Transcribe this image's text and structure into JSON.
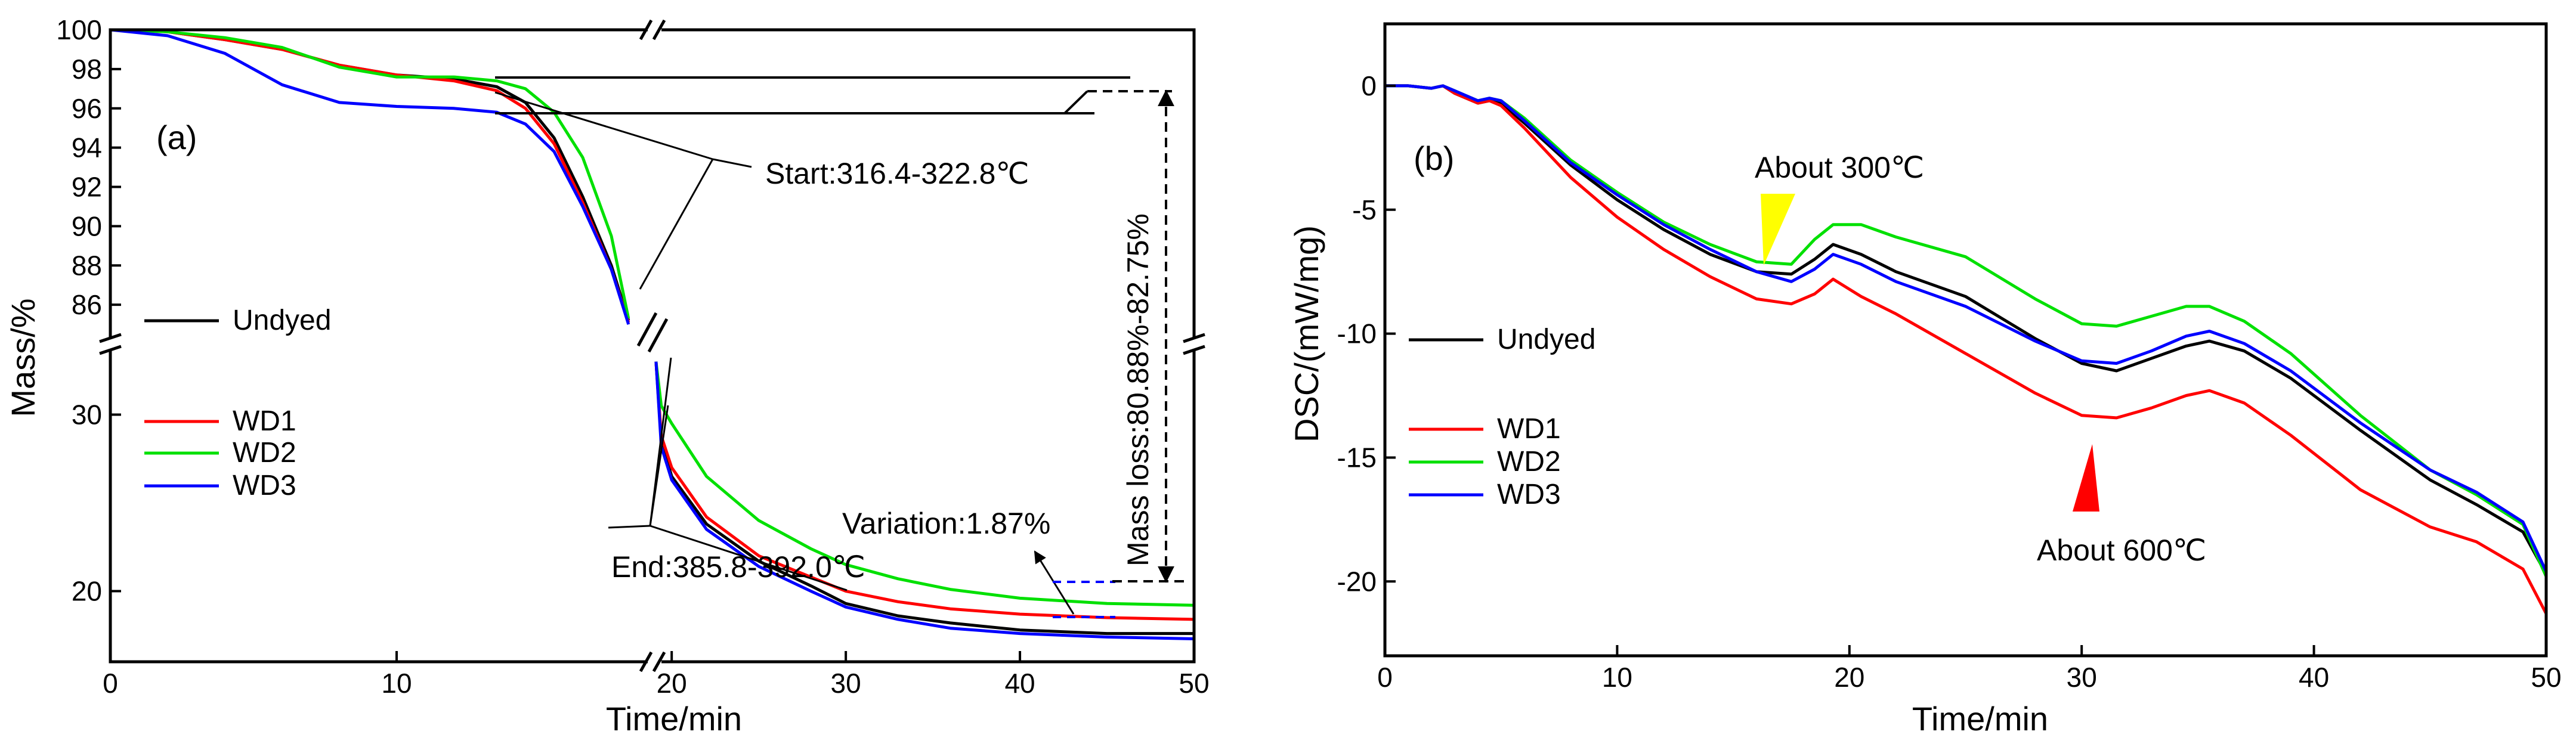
{
  "chart_data": [
    {
      "type": "line",
      "panel_label": "(a)",
      "title": "",
      "xlabel": "Time/min",
      "ylabel": "Mass/%",
      "broken_axes": true,
      "x_segments": [
        [
          0,
          19
        ],
        [
          19,
          50
        ]
      ],
      "y_segments": [
        [
          84,
          100
        ],
        [
          16,
          34
        ]
      ],
      "xlim": [
        0,
        50
      ],
      "xticks": [
        0,
        10,
        20,
        30,
        40,
        50
      ],
      "xtick_labels": [
        "0",
        "10",
        "20",
        "30",
        "40",
        "50"
      ],
      "yticks_upper": [
        86,
        88,
        90,
        92,
        94,
        96,
        98,
        100
      ],
      "ytick_labels_upper": [
        "86",
        "88",
        "90",
        "92",
        "94",
        "96",
        "98",
        "100"
      ],
      "yticks_lower": [
        20,
        30
      ],
      "ytick_labels_lower": [
        "20",
        "30"
      ],
      "legend": [
        "Undyed",
        "WD1",
        "WD2",
        "WD3"
      ],
      "series": [
        {
          "name": "Undyed",
          "color": "#000000",
          "x": [
            0,
            2,
            4,
            6,
            8,
            10,
            12,
            13.5,
            14.5,
            15.5,
            16.5,
            17.5,
            18.1
          ],
          "y": [
            100,
            99.9,
            99.5,
            99,
            98.2,
            97.7,
            97.5,
            97.1,
            96.3,
            94.5,
            91.5,
            88,
            85.2
          ]
        },
        {
          "name": "WD1",
          "color": "#ff0000",
          "x": [
            0,
            2,
            4,
            6,
            8,
            10,
            12,
            13.5,
            14.5,
            15.5,
            16.5,
            17.5,
            18.1
          ],
          "y": [
            100,
            99.9,
            99.5,
            99,
            98.2,
            97.7,
            97.4,
            96.9,
            96,
            94.2,
            91.2,
            87.8,
            85.1
          ]
        },
        {
          "name": "WD2",
          "color": "#00e000",
          "x": [
            0,
            2,
            4,
            6,
            8,
            10,
            12,
            13.5,
            14.5,
            15.5,
            16.5,
            17.5,
            18.1
          ],
          "y": [
            100,
            99.9,
            99.6,
            99.1,
            98.1,
            97.6,
            97.6,
            97.4,
            97,
            95.8,
            93.5,
            89.5,
            85.3
          ]
        },
        {
          "name": "WD3",
          "color": "#0000ff",
          "x": [
            0,
            2,
            4,
            6,
            8,
            10,
            12,
            13.5,
            14.5,
            15.5,
            16.5,
            17.5,
            18.1
          ],
          "y": [
            100,
            99.7,
            98.8,
            97.2,
            96.3,
            96.1,
            96,
            95.8,
            95.2,
            93.8,
            91,
            87.8,
            85
          ]
        }
      ],
      "series_lower": [
        {
          "name": "Undyed",
          "color": "#000000",
          "x": [
            19.1,
            19.4,
            20,
            22,
            25,
            28,
            30,
            33,
            36,
            40,
            45,
            50
          ],
          "y": [
            33,
            28.5,
            26.5,
            23.8,
            21.7,
            20.3,
            19.3,
            18.6,
            18.2,
            17.8,
            17.6,
            17.6
          ]
        },
        {
          "name": "WD1",
          "color": "#ff0000",
          "x": [
            19.1,
            19.4,
            20,
            22,
            25,
            28,
            30,
            33,
            36,
            40,
            45,
            50
          ],
          "y": [
            33,
            28.8,
            27,
            24.2,
            22,
            20.8,
            20,
            19.4,
            19,
            18.7,
            18.5,
            18.4
          ]
        },
        {
          "name": "WD2",
          "color": "#00e000",
          "x": [
            19.1,
            19.4,
            20,
            22,
            25,
            28,
            30,
            33,
            36,
            40,
            45,
            50
          ],
          "y": [
            33,
            30.5,
            29.5,
            26.5,
            24,
            22.4,
            21.5,
            20.7,
            20.1,
            19.6,
            19.3,
            19.2
          ]
        },
        {
          "name": "WD3",
          "color": "#0000ff",
          "x": [
            19.1,
            19.4,
            20,
            22,
            25,
            28,
            30,
            33,
            36,
            40,
            45,
            50
          ],
          "y": [
            33,
            28.2,
            26.3,
            23.5,
            21.4,
            20,
            19.1,
            18.4,
            17.9,
            17.6,
            17.4,
            17.3
          ]
        }
      ],
      "annotations": {
        "start": "Start:316.4-322.8℃",
        "end": "End:385.8-392.0℃",
        "variation": "Variation:1.87%",
        "mass_loss": "Mass loss:80.88%-82.75%"
      }
    },
    {
      "type": "line",
      "panel_label": "(b)",
      "title": "",
      "xlabel": "Time/min",
      "ylabel": "DSC/(mW/mg)",
      "xlim": [
        0,
        50
      ],
      "ylim": [
        -23,
        2.5
      ],
      "xticks": [
        0,
        10,
        20,
        30,
        40,
        50
      ],
      "xtick_labels": [
        "0",
        "10",
        "20",
        "30",
        "40",
        "50"
      ],
      "yticks": [
        0,
        -5,
        -10,
        -15,
        -20
      ],
      "ytick_labels": [
        "0",
        "-5",
        "-10",
        "-15",
        "-20"
      ],
      "legend": [
        "Undyed",
        "WD1",
        "WD2",
        "WD3"
      ],
      "series": [
        {
          "name": "Undyed",
          "color": "#000000",
          "x": [
            0,
            1,
            2,
            2.5,
            3,
            4,
            4.5,
            5,
            6,
            8,
            10,
            12,
            14,
            16,
            17.5,
            18.5,
            19.3,
            20.5,
            22,
            25,
            28,
            30,
            31.5,
            33,
            34.5,
            35.5,
            37,
            39,
            42,
            45,
            47,
            49,
            50
          ],
          "y": [
            0,
            0,
            -0.1,
            0,
            -0.3,
            -0.7,
            -0.6,
            -0.7,
            -1.5,
            -3.2,
            -4.6,
            -5.8,
            -6.8,
            -7.5,
            -7.6,
            -7.0,
            -6.4,
            -6.8,
            -7.5,
            -8.5,
            -10.2,
            -11.2,
            -11.5,
            -11.0,
            -10.5,
            -10.3,
            -10.7,
            -11.8,
            -13.9,
            -15.9,
            -16.9,
            -18.0,
            -19.7
          ]
        },
        {
          "name": "WD1",
          "color": "#ff0000",
          "x": [
            0,
            1,
            2,
            2.5,
            3,
            4,
            4.5,
            5,
            6,
            8,
            10,
            12,
            14,
            16,
            17.5,
            18.5,
            19.3,
            20.5,
            22,
            25,
            28,
            30,
            31.5,
            33,
            34.5,
            35.5,
            37,
            39,
            42,
            45,
            47,
            49,
            50
          ],
          "y": [
            0,
            0,
            -0.1,
            0,
            -0.3,
            -0.7,
            -0.6,
            -0.8,
            -1.7,
            -3.7,
            -5.3,
            -6.6,
            -7.7,
            -8.6,
            -8.8,
            -8.4,
            -7.8,
            -8.5,
            -9.2,
            -10.8,
            -12.4,
            -13.3,
            -13.4,
            -13.0,
            -12.5,
            -12.3,
            -12.8,
            -14.1,
            -16.3,
            -17.8,
            -18.4,
            -19.5,
            -21.3
          ]
        },
        {
          "name": "WD2",
          "color": "#00e000",
          "x": [
            0,
            1,
            2,
            2.5,
            3,
            4,
            4.5,
            5,
            6,
            8,
            10,
            12,
            14,
            16,
            17.5,
            18.5,
            19.3,
            20.5,
            22,
            25,
            28,
            30,
            31.5,
            33,
            34.5,
            35.5,
            37,
            39,
            42,
            45,
            47,
            49,
            50
          ],
          "y": [
            0,
            0,
            -0.1,
            0,
            -0.2,
            -0.6,
            -0.5,
            -0.6,
            -1.3,
            -3.0,
            -4.3,
            -5.5,
            -6.4,
            -7.1,
            -7.2,
            -6.2,
            -5.6,
            -5.6,
            -6.1,
            -6.9,
            -8.6,
            -9.6,
            -9.7,
            -9.3,
            -8.9,
            -8.9,
            -9.5,
            -10.8,
            -13.3,
            -15.5,
            -16.5,
            -17.7,
            -19.8
          ]
        },
        {
          "name": "WD3",
          "color": "#0000ff",
          "x": [
            0,
            1,
            2,
            2.5,
            3,
            4,
            4.5,
            5,
            6,
            8,
            10,
            12,
            14,
            16,
            17.5,
            18.5,
            19.3,
            20.5,
            22,
            25,
            28,
            30,
            31.5,
            33,
            34.5,
            35.5,
            37,
            39,
            42,
            45,
            47,
            49,
            50
          ],
          "y": [
            0,
            0,
            -0.1,
            0,
            -0.2,
            -0.6,
            -0.5,
            -0.6,
            -1.4,
            -3.1,
            -4.4,
            -5.6,
            -6.6,
            -7.5,
            -7.9,
            -7.4,
            -6.8,
            -7.2,
            -7.9,
            -8.9,
            -10.3,
            -11.1,
            -11.2,
            -10.7,
            -10.1,
            -9.9,
            -10.4,
            -11.5,
            -13.6,
            -15.5,
            -16.4,
            -17.6,
            -19.6
          ]
        }
      ],
      "annotations": {
        "about300": "About 300℃",
        "about600": "About 600℃"
      },
      "marker_colors": {
        "about300": "#ffff00",
        "about600": "#ff0000"
      }
    }
  ]
}
